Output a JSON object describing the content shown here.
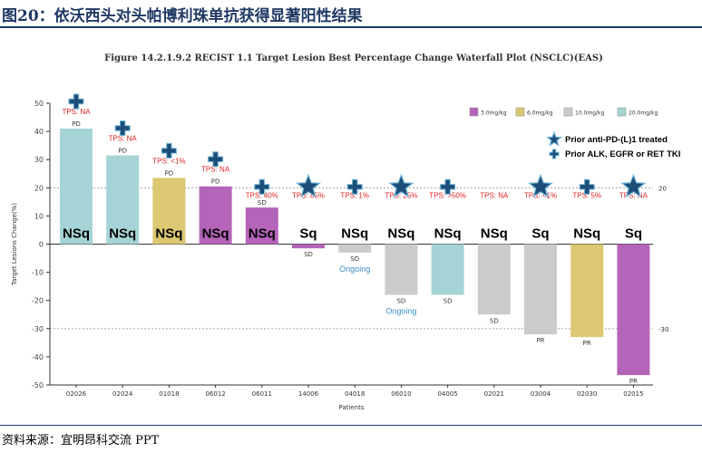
{
  "header": {
    "title": "图20：依沃西头对头帕博利珠单抗获得显著阳性结果"
  },
  "footer": {
    "source": "资料来源：宜明昂科交流 PPT"
  },
  "colors": {
    "3.0mg/kg": "#b565b9",
    "6.0mg/kg": "#dcc872",
    "10.0mg/kg": "#cbcbcb",
    "20.0mg/kg": "#a6d4d6",
    "title_blue": "#1f3864",
    "marker_blue": "#1d4e79",
    "tps_red": "#e02020",
    "ongoing_blue": "#3a8fc8"
  },
  "chart_data": {
    "type": "bar",
    "title": "Figure    14.2.1.9.2 RECIST 1.1 Target Lesion Best Percentage Change Waterfall Plot (NSCLC)(EAS)",
    "xlabel": "Patients",
    "ylabel": "Target Lesions Change(%)",
    "ylim": [
      -50,
      50
    ],
    "yticks": [
      "50",
      "40",
      "30",
      "20",
      "10",
      "0",
      "-10",
      "-20",
      "-30",
      "-40",
      "-50"
    ],
    "reference_lines": [
      {
        "value": 20,
        "label": "20"
      },
      {
        "value": -30,
        "label": "-30"
      }
    ],
    "categories": [
      "02026",
      "02024",
      "01018",
      "06012",
      "06011",
      "14006",
      "04018",
      "06010",
      "04005",
      "02021",
      "03004",
      "02030",
      "02015"
    ],
    "values": [
      41,
      31.5,
      23.5,
      20.5,
      13,
      -1.5,
      -3,
      -18,
      -18,
      -25,
      -32,
      -33,
      -46.5
    ],
    "dose": [
      "20.0mg/kg",
      "20.0mg/kg",
      "6.0mg/kg",
      "3.0mg/kg",
      "3.0mg/kg",
      "3.0mg/kg",
      "10.0mg/kg",
      "10.0mg/kg",
      "20.0mg/kg",
      "10.0mg/kg",
      "10.0mg/kg",
      "6.0mg/kg",
      "3.0mg/kg"
    ],
    "response": [
      "PD",
      "PD",
      "PD",
      "PD",
      "SD",
      "SD",
      "SD",
      "SD",
      "SD",
      "SD",
      "PR",
      "PR",
      "PR"
    ],
    "ongoing": [
      false,
      false,
      false,
      false,
      false,
      false,
      true,
      true,
      false,
      false,
      false,
      false,
      false
    ],
    "ongoing_label": "Ongoing",
    "histology": [
      "NSq",
      "NSq",
      "NSq",
      "NSq",
      "NSq",
      "Sq",
      "NSq",
      "NSq",
      "NSq",
      "NSq",
      "Sq",
      "NSq",
      "Sq"
    ],
    "tps": [
      "TPS: NA",
      "TPS: NA",
      "TPS: <1%",
      "TPS: NA",
      "TPS: 40%",
      "TPS: 85%",
      "TPS: 1%",
      "TPS: 25%",
      "TPS: >50%",
      "TPS: NA",
      "TPS: <1%",
      "TPS: 5%",
      "TPS: NA"
    ],
    "prior_therapy": [
      "alk-egfr-ret-tki",
      "alk-egfr-ret-tki",
      "alk-egfr-ret-tki",
      "alk-egfr-ret-tki",
      "alk-egfr-ret-tki",
      "anti-pd-l1",
      "alk-egfr-ret-tki",
      "anti-pd-l1",
      "alk-egfr-ret-tki",
      "none",
      "anti-pd-l1",
      "alk-egfr-ret-tki",
      "anti-pd-l1"
    ],
    "legend_dose": [
      "3.0mg/kg",
      "6.0mg/kg",
      "10.0mg/kg",
      "20.0mg/kg"
    ],
    "legend_dose_placement": "top-right",
    "legend_prior": [
      {
        "key": "anti-pd-l1",
        "label": "Prior anti-PD-(L)1 treated",
        "icon": "star-icon"
      },
      {
        "key": "alk-egfr-ret-tki",
        "label": "Prior ALK, EGFR or RET TKI",
        "icon": "cross-icon"
      }
    ],
    "grid": false
  }
}
